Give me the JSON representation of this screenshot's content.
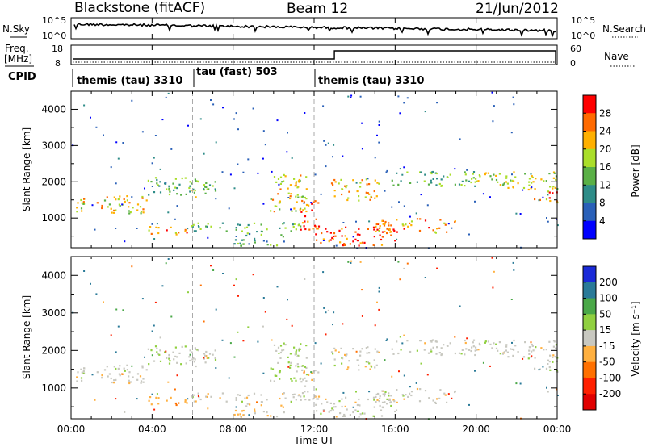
{
  "header": {
    "title_left": "Blackstone (fitACF)",
    "title_center": "Beam 12",
    "title_right": "21/Jun/2012"
  },
  "noise_panel": {
    "left_label": "N.Sky",
    "right_label": "N.Search",
    "left_ticks": [
      "10^5",
      "10^0"
    ],
    "right_ticks": [
      "10^5",
      "10^0"
    ]
  },
  "freq_panel": {
    "left_label_1": "Freq.",
    "left_label_2": "[MHz]",
    "left_ticks": [
      "18",
      "8"
    ],
    "right_ticks": [
      "60",
      "0"
    ],
    "right_label": "Nave"
  },
  "cpid": {
    "label": "CPID",
    "segments": [
      {
        "name": "themis (tau) 3310",
        "start_hour": 0
      },
      {
        "name": "tau (fast) 503",
        "start_hour": 6
      },
      {
        "name": "themis (tau) 3310",
        "start_hour": 12
      }
    ]
  },
  "time_axis": {
    "label": "Time UT",
    "ticks": [
      "00:00",
      "04:00",
      "08:00",
      "12:00",
      "16:00",
      "20:00",
      "00:00"
    ]
  },
  "power_panel": {
    "ylabel": "Slant Range [km]",
    "yticks": [
      "1000",
      "2000",
      "3000",
      "4000"
    ],
    "cbar_label": "Power [dB]",
    "cbar_ticks": [
      "4",
      "8",
      "12",
      "16",
      "20",
      "24",
      "28"
    ],
    "cbar_colors": [
      "#0000ff",
      "#2a60b8",
      "#2e8c88",
      "#5ab046",
      "#aade2a",
      "#ffb000",
      "#ff6a00",
      "#ff0000"
    ]
  },
  "velocity_panel": {
    "ylabel": "Slant Range [km]",
    "yticks": [
      "1000",
      "2000",
      "3000",
      "4000"
    ],
    "cbar_label": "Velocity [m s⁻¹]",
    "cbar_ticks": [
      "200",
      "100",
      "50",
      "15",
      "-15",
      "-50",
      "-100",
      "-200"
    ],
    "cbar_colors": [
      "#1a2ad8",
      "#2a7a98",
      "#4aa848",
      "#90d040",
      "#c8c8c0",
      "#ffb040",
      "#ff7000",
      "#ff2000",
      "#e00000"
    ]
  },
  "chart_data": {
    "type": "heatmap",
    "x_range_hours": [
      0,
      24
    ],
    "y_range_km": [
      180,
      4500
    ],
    "scatter_bands": [
      {
        "t0": 0.2,
        "t1": 3.8,
        "r0": 1150,
        "r1": 1650,
        "power": 20,
        "velocity": 0
      },
      {
        "t0": 3.6,
        "t1": 6.2,
        "r0": 1650,
        "r1": 2150,
        "power": 14,
        "velocity": 10
      },
      {
        "t0": 5.8,
        "t1": 7.2,
        "r0": 1600,
        "r1": 2100,
        "power": 16,
        "velocity": 0
      },
      {
        "t0": 3.8,
        "t1": 5.8,
        "r0": 550,
        "r1": 800,
        "power": 24,
        "velocity": -40
      },
      {
        "t0": 5.8,
        "t1": 11.5,
        "r0": 650,
        "r1": 900,
        "power": 14,
        "velocity": 0
      },
      {
        "t0": 8.0,
        "t1": 10.5,
        "r0": 250,
        "r1": 600,
        "power": 12,
        "velocity": -20
      },
      {
        "t0": 9.8,
        "t1": 11.6,
        "r0": 1200,
        "r1": 2300,
        "power": 20,
        "velocity": 20
      },
      {
        "t0": 11.2,
        "t1": 12.2,
        "r0": 700,
        "r1": 1500,
        "power": 26,
        "velocity": 0
      },
      {
        "t0": 12.0,
        "t1": 16.0,
        "r0": 250,
        "r1": 800,
        "power": 28,
        "velocity": 0
      },
      {
        "t0": 15.0,
        "t1": 19.0,
        "r0": 600,
        "r1": 1000,
        "power": 24,
        "velocity": 0
      },
      {
        "t0": 12.8,
        "t1": 15.2,
        "r0": 1500,
        "r1": 2100,
        "power": 22,
        "velocity": 0
      },
      {
        "t0": 15.5,
        "t1": 20.0,
        "r0": 1900,
        "r1": 2300,
        "power": 14,
        "velocity": 0
      },
      {
        "t0": 20.0,
        "t1": 24.0,
        "r0": 1800,
        "r1": 2300,
        "power": 18,
        "velocity": 0
      },
      {
        "t0": 22.8,
        "t1": 24.0,
        "r0": 1450,
        "r1": 1800,
        "power": 24,
        "velocity": 0
      }
    ]
  }
}
